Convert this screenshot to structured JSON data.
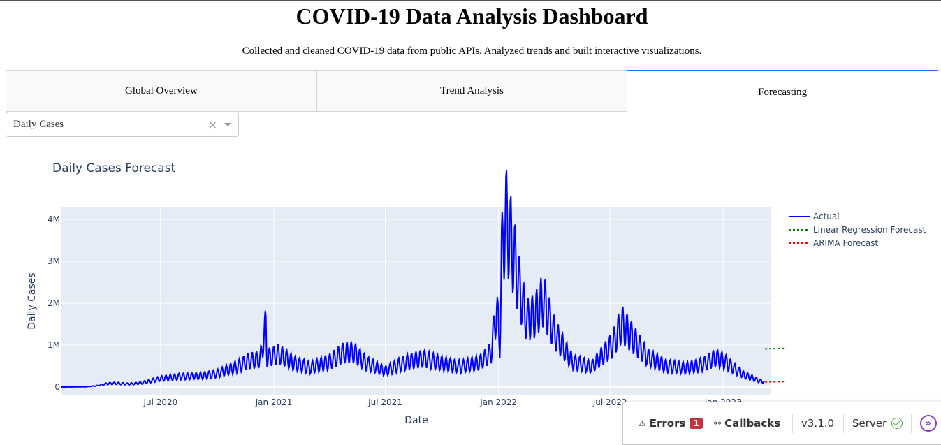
{
  "page": {
    "title": "COVID-19 Data Analysis Dashboard",
    "subtitle": "Collected and cleaned COVID-19 data from public APIs. Analyzed trends and built interactive visualizations."
  },
  "tabs": [
    {
      "label": "Global Overview",
      "active": false
    },
    {
      "label": "Trend Analysis",
      "active": false
    },
    {
      "label": "Forecasting",
      "active": true
    }
  ],
  "dropdown": {
    "selected": "Daily Cases",
    "clear_icon": "×"
  },
  "chart_data": {
    "type": "line",
    "title": "Daily Cases Forecast",
    "xlabel": "Date",
    "ylabel": "Daily Cases",
    "x_ticks": [
      "Jul 2020",
      "Jan 2021",
      "Jul 2021",
      "Jan 2022",
      "Jul 2022",
      "Jan 2023"
    ],
    "y_ticks": [
      "0",
      "1M",
      "2M",
      "3M",
      "4M"
    ],
    "ylim": [
      -200000,
      4300000
    ],
    "xlim": [
      "2020-01-22",
      "2023-03-20"
    ],
    "grid": true,
    "legend_position": "right",
    "series": [
      {
        "name": "Actual",
        "color": "#0000ff",
        "style": "solid",
        "points": [
          [
            "2020-01-22",
            0
          ],
          [
            "2020-03-01",
            5000
          ],
          [
            "2020-03-20",
            30000
          ],
          [
            "2020-04-05",
            80000
          ],
          [
            "2020-04-20",
            90000
          ],
          [
            "2020-05-10",
            70000
          ],
          [
            "2020-06-01",
            100000
          ],
          [
            "2020-07-01",
            200000
          ],
          [
            "2020-08-01",
            250000
          ],
          [
            "2020-09-01",
            260000
          ],
          [
            "2020-10-01",
            320000
          ],
          [
            "2020-11-01",
            480000
          ],
          [
            "2020-11-20",
            620000
          ],
          [
            "2020-12-10",
            660000
          ],
          [
            "2020-12-19",
            1480000
          ],
          [
            "2020-12-21",
            700000
          ],
          [
            "2021-01-10",
            780000
          ],
          [
            "2021-02-01",
            580000
          ],
          [
            "2021-03-01",
            460000
          ],
          [
            "2021-04-01",
            600000
          ],
          [
            "2021-04-25",
            820000
          ],
          [
            "2021-05-10",
            830000
          ],
          [
            "2021-06-01",
            560000
          ],
          [
            "2021-07-01",
            380000
          ],
          [
            "2021-08-01",
            580000
          ],
          [
            "2021-09-01",
            680000
          ],
          [
            "2021-10-01",
            560000
          ],
          [
            "2021-11-01",
            490000
          ],
          [
            "2021-12-01",
            580000
          ],
          [
            "2021-12-20",
            820000
          ],
          [
            "2021-12-29",
            1900000
          ],
          [
            "2022-01-03",
            1000000
          ],
          [
            "2022-01-06",
            3000000
          ],
          [
            "2022-01-12",
            4080000
          ],
          [
            "2022-01-25",
            3200000
          ],
          [
            "2022-02-05",
            2300000
          ],
          [
            "2022-02-15",
            1600000
          ],
          [
            "2022-03-01",
            1700000
          ],
          [
            "2022-03-15",
            2100000
          ],
          [
            "2022-04-01",
            1300000
          ],
          [
            "2022-05-01",
            600000
          ],
          [
            "2022-06-01",
            480000
          ],
          [
            "2022-07-05",
            1000000
          ],
          [
            "2022-07-20",
            1500000
          ],
          [
            "2022-08-05",
            1200000
          ],
          [
            "2022-09-01",
            700000
          ],
          [
            "2022-10-01",
            500000
          ],
          [
            "2022-11-01",
            450000
          ],
          [
            "2022-12-01",
            550000
          ],
          [
            "2022-12-20",
            700000
          ],
          [
            "2023-01-05",
            600000
          ],
          [
            "2023-02-01",
            300000
          ],
          [
            "2023-03-01",
            150000
          ],
          [
            "2023-03-09",
            120000
          ]
        ]
      },
      {
        "name": "Linear Regression Forecast",
        "color": "#008000",
        "style": "dotted",
        "points": [
          [
            "2023-03-10",
            910000
          ],
          [
            "2023-04-10",
            920000
          ]
        ]
      },
      {
        "name": "ARIMA Forecast",
        "color": "#ff0000",
        "style": "dotted",
        "points": [
          [
            "2023-03-10",
            120000
          ],
          [
            "2023-04-10",
            130000
          ]
        ]
      }
    ]
  },
  "devtools": {
    "errors_label": "Errors",
    "errors_count": "1",
    "callbacks_label": "Callbacks",
    "version": "v3.1.0",
    "server_label": "Server",
    "collapse_icon": "chevron-double-right-icon"
  }
}
